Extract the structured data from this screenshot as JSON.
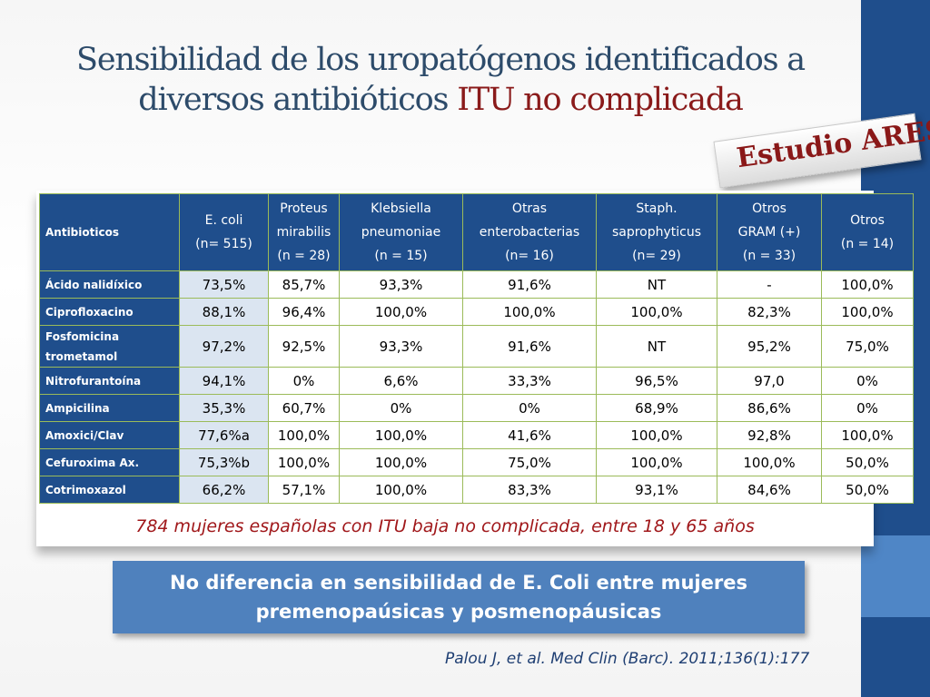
{
  "title": {
    "line1": "Sensibilidad de los uropatógenos identificados a",
    "line2_prefix": "diversos antibióticos ",
    "line2_highlight": "ITU no complicada"
  },
  "stamp": "Estudio ARESC",
  "table": {
    "corner": "Antibioticos",
    "headers": [
      [
        "E. coli",
        "(n= 515)"
      ],
      [
        "Proteus",
        "mirabilis",
        "(n = 28)"
      ],
      [
        "Klebsiella",
        "pneumoniae",
        "(n = 15)"
      ],
      [
        "Otras",
        "enterobacterias",
        "(n= 16)"
      ],
      [
        "Staph.",
        "saprophyticus",
        "(n= 29)"
      ],
      [
        "Otros",
        "GRAM (+)",
        "(n = 33)"
      ],
      [
        "Otros",
        "(n = 14)"
      ]
    ],
    "rows": [
      {
        "label": [
          "Ácido nalidíxico"
        ],
        "values": [
          "73,5%",
          "85,7%",
          "93,3%",
          "91,6%",
          "NT",
          "-",
          "100,0%"
        ]
      },
      {
        "label": [
          "Ciprofloxacino"
        ],
        "values": [
          "88,1%",
          "96,4%",
          "100,0%",
          "100,0%",
          "100,0%",
          "82,3%",
          "100,0%"
        ]
      },
      {
        "label": [
          "Fosfomicina",
          "trometamol"
        ],
        "values": [
          "97,2%",
          "92,5%",
          "93,3%",
          "91,6%",
          "NT",
          "95,2%",
          "75,0%"
        ]
      },
      {
        "label": [
          "Nitrofurantoína"
        ],
        "values": [
          "94,1%",
          "0%",
          "6,6%",
          "33,3%",
          "96,5%",
          "97,0",
          "0%"
        ]
      },
      {
        "label": [
          "Ampicilina"
        ],
        "values": [
          "35,3%",
          "60,7%",
          "0%",
          "0%",
          "68,9%",
          "86,6%",
          "0%"
        ]
      },
      {
        "label": [
          "Amoxici/Clav"
        ],
        "values": [
          "77,6%a",
          "100,0%",
          "100,0%",
          "41,6%",
          "100,0%",
          "92,8%",
          "100,0%"
        ]
      },
      {
        "label": [
          "Cefuroxima Ax."
        ],
        "values": [
          "75,3%b",
          "100,0%",
          "100,0%",
          "75,0%",
          "100,0%",
          "100,0%",
          "50,0%"
        ]
      },
      {
        "label": [
          "Cotrimoxazol"
        ],
        "values": [
          "66,2%",
          "57,1%",
          "100,0%",
          "83,3%",
          "93,1%",
          "84,6%",
          "50,0%"
        ]
      }
    ]
  },
  "caption": "784 mujeres españolas con ITU baja no complicada, entre 18 y 65 años",
  "callout": {
    "line1": "No diferencia en sensibilidad de E. Coli entre mujeres",
    "line2": "premenopaúsicas  y posmenopáusicas"
  },
  "citation": "Palou J, et al.  Med Clin (Barc). 2011;136(1):177",
  "colors": {
    "header_bg": "#1f4e8c",
    "accent_red": "#a0171a",
    "callout_bg": "#4f81bd",
    "grid_line": "#9bbb59",
    "ecoli_cell_bg": "#dbe5f1"
  }
}
